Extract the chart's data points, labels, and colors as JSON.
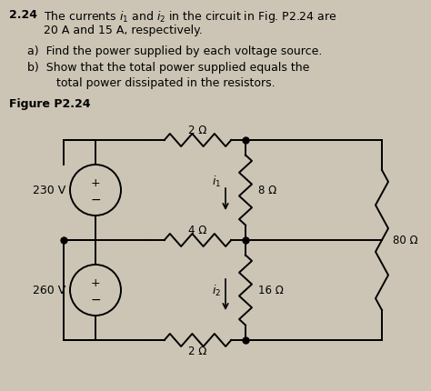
{
  "title_num": "2.24",
  "title_text": "The currents $i_1$ and $i_2$ in the circuit in Fig. P2.24 are",
  "title_text2": "20 A and 15 A, respectively.",
  "part_a": "a)  Find the power supplied by each voltage source.",
  "part_b1": "b)  Show that the total power supplied equals the",
  "part_b2": "        total power dissipated in the resistors.",
  "fig_label": "Figure P2.24",
  "bg_color": "#ccc5b5",
  "text_color": "#000000",
  "v1": "230 V",
  "v2": "260 V",
  "r1": "2 Ω",
  "r2": "4 Ω",
  "r3": "2 Ω",
  "r4": "8 Ω",
  "r5": "16 Ω",
  "r6": "80 Ω",
  "i1_label": "$i_1$",
  "i2_label": "$i_2$",
  "figsize": [
    4.74,
    4.31
  ],
  "dpi": 100
}
